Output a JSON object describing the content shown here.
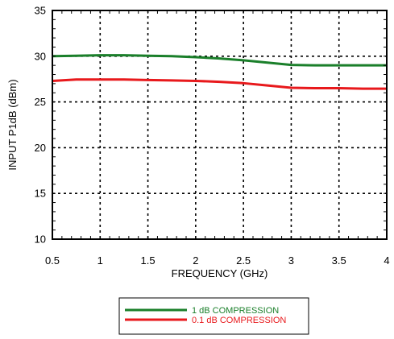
{
  "chart_data": {
    "type": "line",
    "title": "",
    "xlabel": "FREQUENCY (GHz)",
    "ylabel": "INPUT P1dB (dBm)",
    "xlim": [
      0.5,
      4
    ],
    "ylim": [
      10,
      35
    ],
    "x_ticks": [
      0.5,
      1,
      1.5,
      2,
      2.5,
      3,
      3.5,
      4
    ],
    "x_tick_labels": [
      "0.5",
      "1",
      "1.5",
      "2",
      "2.5",
      "3",
      "3.5",
      "4"
    ],
    "y_ticks": [
      10,
      15,
      20,
      25,
      30,
      35
    ],
    "y_tick_labels": [
      "10",
      "15",
      "20",
      "25",
      "30",
      "35"
    ],
    "grid": true,
    "legend_position": "bottom-center",
    "series": [
      {
        "name": "1 dB COMPRESSION",
        "color": "#1a7f2a",
        "x": [
          0.5,
          0.75,
          1.0,
          1.25,
          1.5,
          1.75,
          2.0,
          2.25,
          2.5,
          2.75,
          3.0,
          3.25,
          3.5,
          3.75,
          4.0
        ],
        "y": [
          30.0,
          30.05,
          30.1,
          30.1,
          30.05,
          30.0,
          29.9,
          29.75,
          29.55,
          29.3,
          29.05,
          29.0,
          29.0,
          29.0,
          29.0
        ]
      },
      {
        "name": "0.1 dB COMPRESSION",
        "color": "#e8191c",
        "x": [
          0.5,
          0.75,
          1.0,
          1.25,
          1.5,
          1.75,
          2.0,
          2.25,
          2.5,
          2.75,
          3.0,
          3.25,
          3.5,
          3.75,
          4.0
        ],
        "y": [
          27.3,
          27.45,
          27.45,
          27.45,
          27.4,
          27.35,
          27.3,
          27.2,
          27.05,
          26.8,
          26.55,
          26.5,
          26.5,
          26.45,
          26.45
        ]
      }
    ]
  }
}
